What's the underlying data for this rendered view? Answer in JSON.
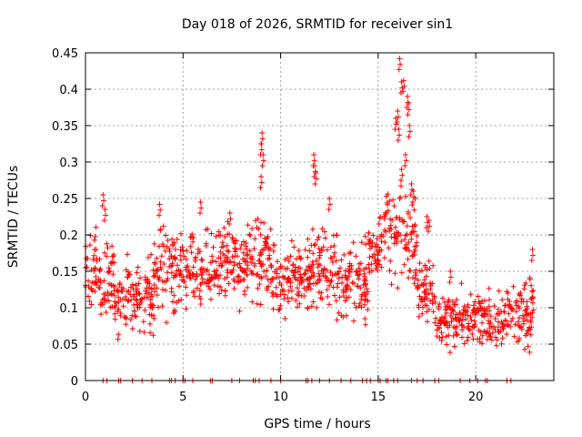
{
  "chart_data": {
    "type": "scatter",
    "title": "Day 018 of 2026, SRMTID for receiver sin1",
    "xlabel": "GPS time / hours",
    "ylabel": "SRMTID / TECUs",
    "xlim": [
      0,
      24
    ],
    "ylim": [
      0,
      0.45
    ],
    "xticks": [
      0,
      5,
      10,
      15,
      20
    ],
    "xtick_labels": [
      "0",
      "5",
      "10",
      "15",
      "20"
    ],
    "yticks": [
      0,
      0.05,
      0.1,
      0.15,
      0.2,
      0.25,
      0.3,
      0.35,
      0.4,
      0.45
    ],
    "ytick_labels": [
      "0",
      "0.05",
      "0.1",
      "0.15",
      "0.2",
      "0.25",
      "0.3",
      "0.35",
      "0.4",
      "0.45"
    ],
    "grid": true,
    "marker": "+",
    "color": "#ff0000",
    "series": [
      {
        "name": "SRMTID",
        "segments": [
          {
            "x": [
              0.0,
              1.5
            ],
            "mean": 0.14,
            "spread": 0.05
          },
          {
            "x": [
              1.5,
              3.5
            ],
            "mean": 0.11,
            "spread": 0.04
          },
          {
            "x": [
              3.5,
              6.0
            ],
            "mean": 0.15,
            "spread": 0.045
          },
          {
            "x": [
              6.0,
              8.5
            ],
            "mean": 0.16,
            "spread": 0.045
          },
          {
            "x": [
              8.5,
              9.5
            ],
            "mean": 0.17,
            "spread": 0.06
          },
          {
            "x": [
              9.5,
              11.5
            ],
            "mean": 0.14,
            "spread": 0.045
          },
          {
            "x": [
              11.5,
              13.0
            ],
            "mean": 0.15,
            "spread": 0.05
          },
          {
            "x": [
              13.0,
              14.5
            ],
            "mean": 0.13,
            "spread": 0.045
          },
          {
            "x": [
              14.5,
              15.3
            ],
            "mean": 0.18,
            "spread": 0.03
          },
          {
            "x": [
              15.3,
              16.0
            ],
            "mean": 0.21,
            "spread": 0.045
          },
          {
            "x": [
              16.0,
              17.0
            ],
            "mean": 0.19,
            "spread": 0.06
          },
          {
            "x": [
              17.0,
              18.0
            ],
            "mean": 0.12,
            "spread": 0.035
          },
          {
            "x": [
              18.0,
              21.5
            ],
            "mean": 0.085,
            "spread": 0.03
          },
          {
            "x": [
              21.5,
              23.0
            ],
            "mean": 0.09,
            "spread": 0.035
          }
        ],
        "peaks": [
          {
            "x": 0.9,
            "y": 0.255
          },
          {
            "x": 1.0,
            "y": 0.235
          },
          {
            "x": 3.8,
            "y": 0.242
          },
          {
            "x": 5.9,
            "y": 0.245
          },
          {
            "x": 7.4,
            "y": 0.23
          },
          {
            "x": 9.05,
            "y": 0.34
          },
          {
            "x": 9.0,
            "y": 0.325
          },
          {
            "x": 9.1,
            "y": 0.31
          },
          {
            "x": 9.0,
            "y": 0.28
          },
          {
            "x": 11.7,
            "y": 0.31
          },
          {
            "x": 11.75,
            "y": 0.295
          },
          {
            "x": 11.8,
            "y": 0.285
          },
          {
            "x": 12.5,
            "y": 0.25
          },
          {
            "x": 15.9,
            "y": 0.36
          },
          {
            "x": 16.0,
            "y": 0.37
          },
          {
            "x": 16.05,
            "y": 0.345
          },
          {
            "x": 16.1,
            "y": 0.442
          },
          {
            "x": 16.2,
            "y": 0.41
          },
          {
            "x": 16.3,
            "y": 0.412
          },
          {
            "x": 16.5,
            "y": 0.39
          },
          {
            "x": 16.55,
            "y": 0.38
          },
          {
            "x": 16.6,
            "y": 0.35
          },
          {
            "x": 16.4,
            "y": 0.31
          },
          {
            "x": 16.2,
            "y": 0.29
          },
          {
            "x": 16.7,
            "y": 0.27
          },
          {
            "x": 16.8,
            "y": 0.26
          },
          {
            "x": 17.5,
            "y": 0.225
          },
          {
            "x": 17.6,
            "y": 0.22
          },
          {
            "x": 18.7,
            "y": 0.15
          },
          {
            "x": 22.9,
            "y": 0.18
          }
        ],
        "zeros_x": [
          0.9,
          1.1,
          1.7,
          1.8,
          2.4,
          2.9,
          3.4,
          4.3,
          4.4,
          4.6,
          5.0,
          5.1,
          5.5,
          6.4,
          6.5,
          7.5,
          7.9,
          8.6,
          8.7,
          8.9,
          9.5,
          10.0,
          11.3,
          11.4,
          11.6,
          12.0,
          12.5,
          13.1,
          13.6,
          14.2,
          14.4,
          14.6,
          15.0,
          15.1,
          15.4,
          15.5,
          15.8,
          16.0,
          16.7,
          17.0,
          17.3,
          17.9,
          18.1,
          19.2,
          19.7,
          20.1,
          20.5,
          20.6,
          21.6,
          21.8
        ]
      }
    ]
  }
}
